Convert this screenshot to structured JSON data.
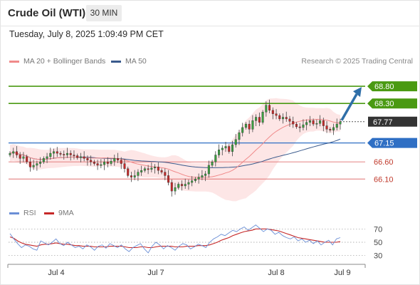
{
  "header": {
    "instrument": "Crude Oil (WTI)",
    "timeframe": "30 MIN"
  },
  "timestamp": "Tuesday, July 8, 2025 1:09:49 PM CET",
  "legend": {
    "ma20": "MA 20 + Bollinger Bands",
    "ma50": "MA 50",
    "credit": "Research © 2025 Trading Central"
  },
  "rsi_legend": {
    "rsi": "RSI",
    "ma9": "9MA"
  },
  "colors": {
    "ma20": "#f08a8a",
    "ma50": "#3a5a8c",
    "band": "#fde2e2",
    "up": "#3aa040",
    "down": "#c62828",
    "target": "#4a9a12",
    "pivot": "#2f6fc4",
    "support": "#e07070",
    "last": "#333333",
    "arrow": "#2f6fa8",
    "rsi": "#6b8fd6",
    "ma9": "#c62828"
  },
  "chart_data": [
    {
      "type": "candlestick",
      "title": "Crude Oil (WTI)",
      "interval": "30 MIN",
      "xlabel": "",
      "ylabel": "",
      "x_ticks": [
        "Jul 4",
        "Jul 7",
        "Jul 8",
        "Jul 9"
      ],
      "ylim": [
        65.4,
        69.3
      ],
      "price_close": [
        66.85,
        66.9,
        66.8,
        66.7,
        66.75,
        66.6,
        66.45,
        66.5,
        66.55,
        66.6,
        66.7,
        66.75,
        66.85,
        66.9,
        66.85,
        66.82,
        66.8,
        66.85,
        66.8,
        66.78,
        66.72,
        66.75,
        66.7,
        66.65,
        66.6,
        66.55,
        66.5,
        66.52,
        66.6,
        66.55,
        66.62,
        66.7,
        66.65,
        66.55,
        66.4,
        66.2,
        66.15,
        66.2,
        66.3,
        66.35,
        66.4,
        66.38,
        66.42,
        66.45,
        66.35,
        66.3,
        66.2,
        66.0,
        65.75,
        65.85,
        65.95,
        65.9,
        65.95,
        66.0,
        66.05,
        66.1,
        66.15,
        66.2,
        66.25,
        66.5,
        66.6,
        66.8,
        66.95,
        67.0,
        67.05,
        66.9,
        67.1,
        67.25,
        67.45,
        67.6,
        67.7,
        67.55,
        67.8,
        67.9,
        67.75,
        68.05,
        68.25,
        68.1,
        68.0,
        67.95,
        67.85,
        67.9,
        67.85,
        67.78,
        67.7,
        67.62,
        67.6,
        67.68,
        67.75,
        67.8,
        67.7,
        67.72,
        67.8,
        67.65,
        67.55,
        67.52,
        67.6,
        67.7,
        67.77
      ],
      "price_open_offset": -0.05,
      "levels": [
        {
          "label": "68.80",
          "value": 68.8,
          "kind": "target"
        },
        {
          "label": "68.30",
          "value": 68.3,
          "kind": "target"
        },
        {
          "label": "67.77",
          "value": 67.77,
          "kind": "last"
        },
        {
          "label": "67.15",
          "value": 67.15,
          "kind": "pivot"
        },
        {
          "label": "66.60",
          "value": 66.6,
          "kind": "support"
        },
        {
          "label": "66.10",
          "value": 66.1,
          "kind": "support"
        }
      ],
      "series": [
        {
          "name": "MA 20 + Bollinger Bands"
        },
        {
          "name": "MA 50"
        }
      ]
    },
    {
      "type": "line",
      "title": "",
      "y_ticks": [
        70,
        50,
        30
      ],
      "ylim": [
        20,
        80
      ],
      "series": [
        {
          "name": "RSI",
          "values": [
            63,
            55,
            48,
            42,
            46,
            44,
            40,
            38,
            52,
            49,
            46,
            50,
            55,
            48,
            45,
            50,
            46,
            42,
            44,
            40,
            46,
            43,
            38,
            44,
            46,
            41,
            48,
            45,
            42,
            46,
            40,
            36,
            42,
            45,
            48,
            40,
            34,
            44,
            50,
            46,
            40,
            45,
            42,
            38,
            44,
            48,
            46,
            40,
            43,
            47,
            45,
            42,
            50,
            55,
            58,
            62,
            60,
            64,
            68,
            66,
            70,
            73,
            68,
            72,
            76,
            71,
            66,
            70,
            68,
            62,
            65,
            60,
            57,
            55,
            58,
            52,
            55,
            50,
            53,
            48,
            52,
            46,
            50,
            53,
            46,
            55,
            57
          ]
        },
        {
          "name": "9MA",
          "values": [
            58,
            56,
            52,
            49,
            47,
            46,
            45,
            44,
            46,
            47,
            47,
            48,
            49,
            48,
            47,
            47,
            46,
            45,
            45,
            44,
            44,
            44,
            43,
            43,
            43,
            43,
            44,
            44,
            44,
            44,
            43,
            42,
            42,
            42,
            43,
            43,
            42,
            42,
            43,
            44,
            44,
            44,
            44,
            43,
            43,
            43,
            44,
            44,
            44,
            45,
            45,
            45,
            46,
            48,
            50,
            53,
            55,
            57,
            60,
            62,
            64,
            66,
            67,
            68,
            70,
            70,
            70,
            70,
            69,
            68,
            67,
            65,
            63,
            61,
            59,
            57,
            56,
            55,
            54,
            53,
            52,
            51,
            50,
            50,
            50,
            50,
            51
          ]
        }
      ]
    }
  ]
}
